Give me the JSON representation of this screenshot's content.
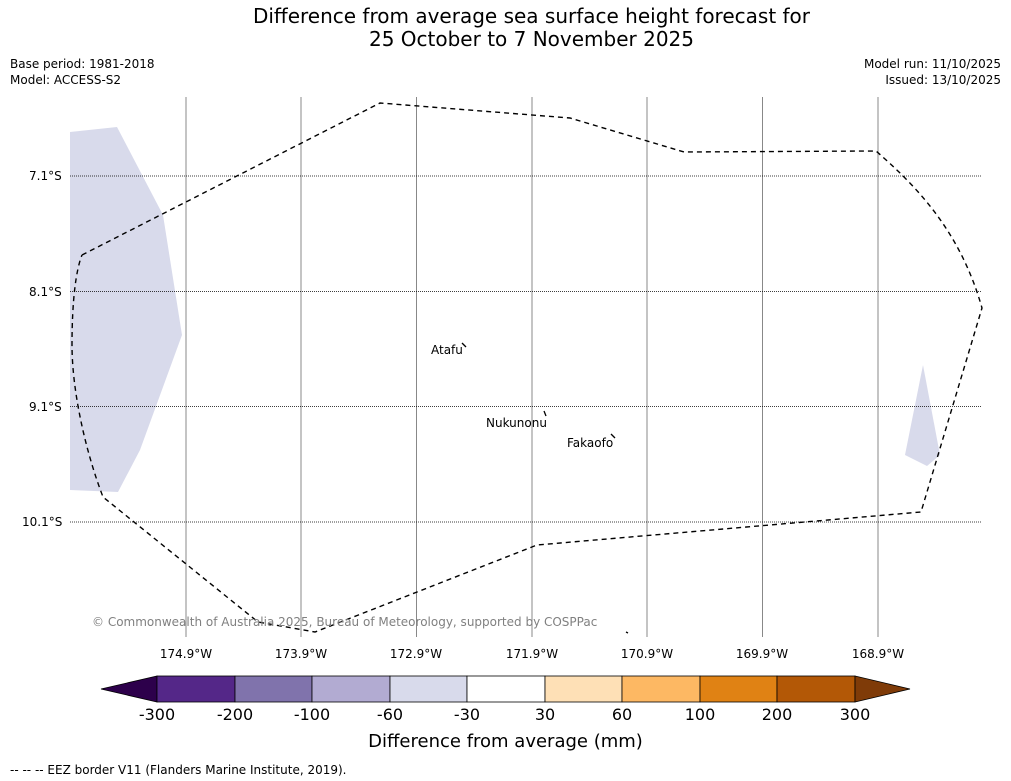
{
  "title": {
    "line1": "Difference from average sea surface height forecast for",
    "line2": "25 October to 7 November 2025"
  },
  "meta": {
    "base_period": "Base period: 1981-2018",
    "model": "Model: ACCESS-S2",
    "model_run": "Model run: 11/10/2025",
    "issued": "Issued: 13/10/2025"
  },
  "map": {
    "latitude_labels": [
      "7.1°S",
      "8.1°S",
      "9.1°S",
      "10.1°S"
    ],
    "longitude_labels": [
      "174.9°W",
      "173.9°W",
      "172.9°W",
      "171.9°W",
      "170.9°W",
      "169.9°W",
      "168.9°W"
    ],
    "places": [
      "Atafu",
      "Nukunonu",
      "Fakaofo"
    ],
    "anomaly_fill_category": "-60 to -30",
    "eez_line_style": "dashed",
    "copyright": "© Commonwealth of Australia 2025, Bureau of Meteorology, supported by COSPPac"
  },
  "colorbar": {
    "ticks": [
      "-300",
      "-200",
      "-100",
      "-60",
      "-30",
      "30",
      "60",
      "100",
      "200",
      "300"
    ],
    "colors": [
      "#2d004b",
      "#542788",
      "#8073ac",
      "#b2abd2",
      "#d8daeb",
      "#ffffff",
      "#fee0b6",
      "#fdb863",
      "#e08214",
      "#b35806",
      "#7f3b08"
    ],
    "label": "Difference from average (mm)"
  },
  "footer": "--  --  -- EEZ border V11 (Flanders Marine Institute, 2019)."
}
